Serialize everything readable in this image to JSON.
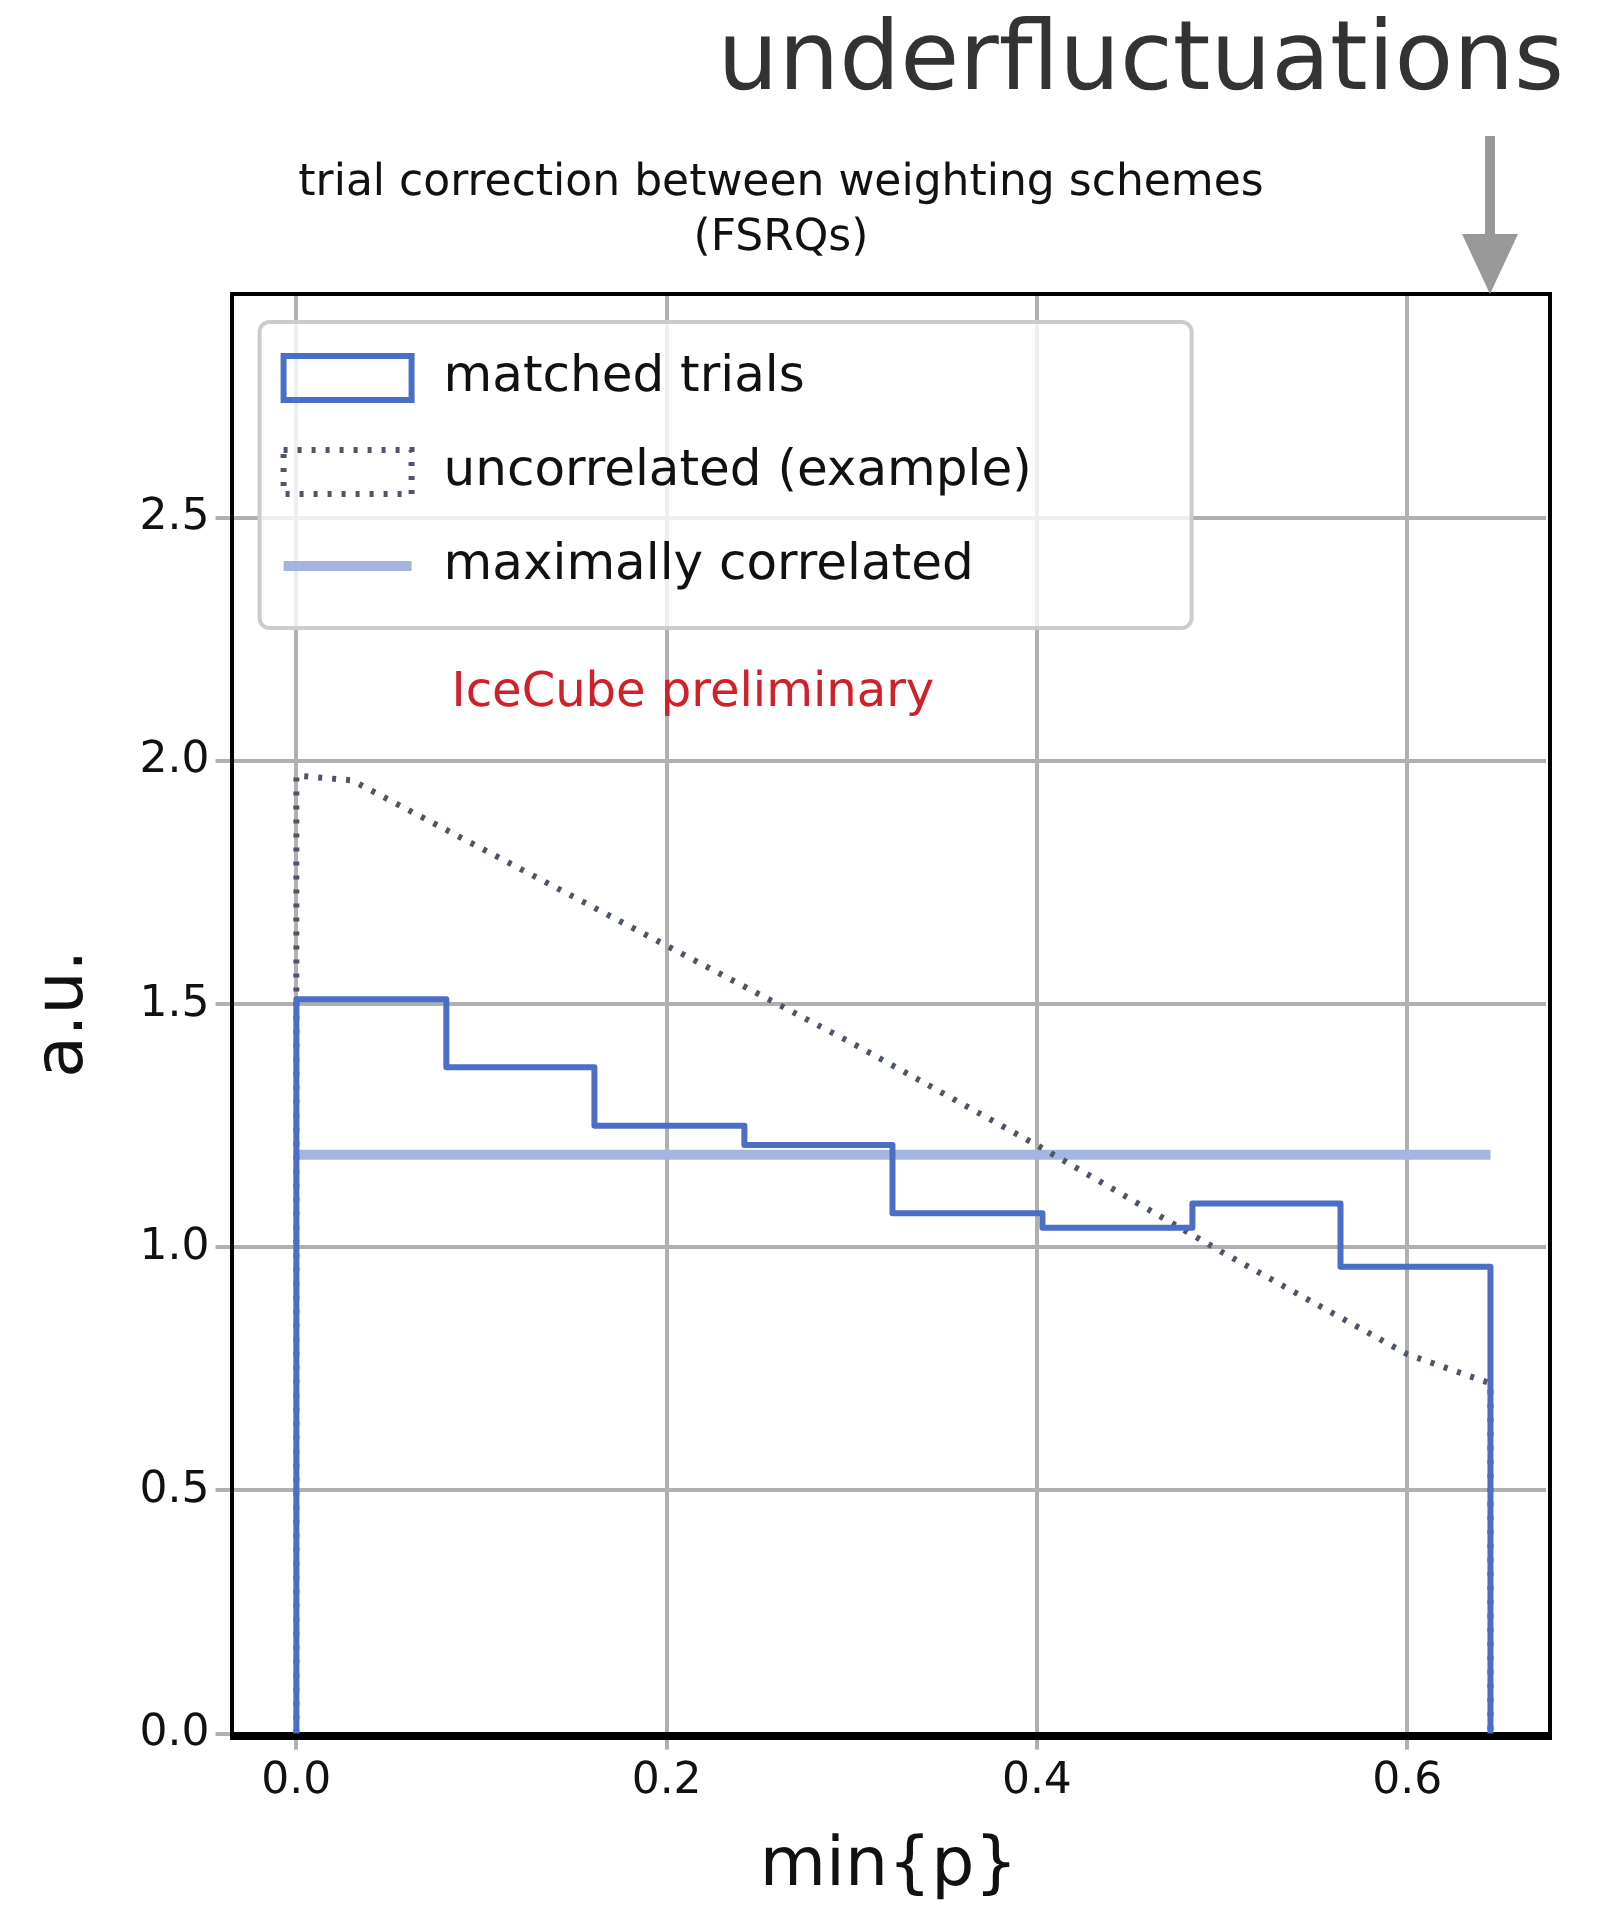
{
  "chart_data": {
    "type": "histogram",
    "title": "trial correction between weighting schemes\n(FSRQs)",
    "xlabel": "min{p}",
    "ylabel": "a.u.",
    "bins": [
      0,
      0.081,
      0.161,
      0.242,
      0.322,
      0.403,
      0.484,
      0.564,
      0.645
    ],
    "series": [
      {
        "name": "matched trials",
        "type": "histogram",
        "color": "#4a6fc6",
        "values": [
          1.51,
          1.37,
          1.25,
          1.21,
          1.07,
          1.04,
          1.09,
          0.96
        ]
      },
      {
        "name": "uncorrelated (example)",
        "type": "line",
        "color": "#4d5566",
        "line_style": "dotted",
        "x": [
          0,
          0,
          0.03,
          0.1,
          0.2,
          0.3,
          0.4,
          0.5,
          0.6,
          0.645,
          0.645
        ],
        "values": [
          0,
          1.97,
          1.96,
          1.82,
          1.62,
          1.42,
          1.21,
          0.99,
          0.78,
          0.72,
          0
        ]
      },
      {
        "name": "maximally correlated",
        "type": "line",
        "color": "#a4b6e0",
        "x": [
          0,
          0.645
        ],
        "values": [
          1.19,
          1.19
        ]
      }
    ],
    "xlim": [
      -0.035,
      0.675
    ],
    "ylim": [
      0,
      2.96
    ],
    "xticks": [
      {
        "value": 0,
        "label": "0.0"
      },
      0.2,
      0.4,
      0.6
    ],
    "yticks": [
      {
        "value": 0,
        "label": "0.0"
      },
      0.5,
      {
        "value": 1,
        "label": "1.0"
      },
      1.5,
      {
        "value": 2,
        "label": "2.0"
      },
      2.5
    ],
    "grid": true,
    "legend": "top left",
    "annotations": [
      "IceCube preliminary",
      "underfluctuations"
    ]
  }
}
